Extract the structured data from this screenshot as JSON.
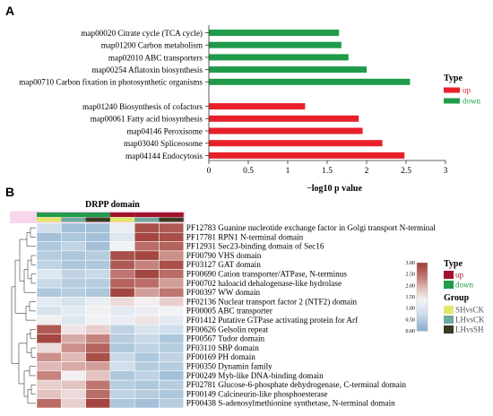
{
  "figure": {
    "panel_a_label": "A",
    "panel_b_label": "B"
  },
  "chart_data": [
    {
      "type": "bar",
      "orientation": "horizontal",
      "categories": [
        "map00020 Citrate cycle (TCA cycle)",
        "map01200 Carbon metabolism",
        "map02010 ABC transporters",
        "map00254 Aflatoxin biosynthesis",
        "map00710 Carbon fixation in photosynthetic organisms",
        "map01240 Biosynthesis of cofactors",
        "map00061 Fatty acid biosynthesis",
        "map04146 Peroxisome",
        "map03040 Spliceosome",
        "map04144 Endocytosis"
      ],
      "values": [
        1.65,
        1.68,
        1.77,
        2.0,
        2.55,
        1.22,
        1.9,
        1.95,
        2.2,
        2.48
      ],
      "groups": [
        "down",
        "down",
        "down",
        "down",
        "down",
        "up",
        "up",
        "up",
        "up",
        "up"
      ],
      "xlabel": "−log10 p value",
      "ylabel": "",
      "xlim": [
        0,
        3
      ],
      "xticks": [
        "0",
        "0.5",
        "1",
        "1.5",
        "2",
        "2.5",
        "3"
      ],
      "legend": {
        "title": "Type",
        "position": "right",
        "entries": [
          {
            "label": "up",
            "color": "#e8202a"
          },
          {
            "label": "down",
            "color": "#1f9b4a"
          }
        ]
      },
      "grid": false
    },
    {
      "type": "heatmap",
      "title": "DRPP domain",
      "rows": [
        "PF12783 Guanine nucleotide exchange factor in Golgi transport N-terminal",
        "PF17781 RPN1 N-terminal domain",
        "PF12931 Sec23-binding domain of Sec16",
        "PF00790 VHS domain",
        "PF03127 GAT domain",
        "PF00690 Cation transporter/ATPase, N-terminus",
        "PF00702 haloacid dehalogenase-like hydrolase",
        "PF00397 WW domain",
        "PF02136 Nuclear transport factor 2 (NTF2) domain",
        "PF00005 ABC transporter",
        "PF01412 Putative GTPase activating protein for Arf",
        "PF00626 Gelsolin repeat",
        "PF00567 Tudor domain",
        "PF03110 SBP domain",
        "PF00169 PH domain",
        "PF00350 Dynamin family",
        "PF00249 Myb-like DNA-binding domain",
        "PF02781 Glucose-6-phosphate dehydrogenase, C-terminal domain",
        "PF00149 Calcineurin-like phosphoesterase",
        "PF00438 S-adenosylmethionine synthetase, N-terminal domain"
      ],
      "column_type": [
        "down",
        "down",
        "down",
        "up",
        "up",
        "up"
      ],
      "column_group": [
        "SHvsCK",
        "LHvsCK",
        "LHvsSH",
        "SHvsCK",
        "LHvsCK",
        "LHvsSH"
      ],
      "values": [
        [
          0.8,
          0.3,
          0.3,
          1.2,
          2.8,
          2.7
        ],
        [
          0.3,
          0.4,
          0.3,
          1.0,
          2.9,
          2.8
        ],
        [
          0.4,
          0.6,
          0.3,
          1.3,
          2.5,
          2.6
        ],
        [
          0.5,
          0.4,
          0.5,
          2.8,
          2.9,
          2.2
        ],
        [
          0.6,
          0.4,
          0.4,
          2.7,
          2.3,
          2.8
        ],
        [
          1.0,
          0.6,
          0.7,
          2.4,
          2.9,
          2.5
        ],
        [
          0.7,
          0.5,
          0.5,
          2.6,
          2.5,
          2.1
        ],
        [
          0.4,
          0.5,
          0.4,
          2.9,
          2.1,
          2.4
        ],
        [
          1.1,
          0.9,
          1.2,
          1.6,
          1.4,
          1.7
        ],
        [
          0.9,
          1.1,
          1.4,
          1.1,
          1.2,
          1.3
        ],
        [
          1.4,
          1.0,
          1.3,
          1.2,
          1.5,
          1.1
        ],
        [
          2.7,
          1.5,
          1.7,
          0.6,
          0.9,
          0.8
        ],
        [
          2.9,
          2.0,
          2.3,
          0.5,
          0.7,
          0.4
        ],
        [
          1.6,
          2.2,
          2.6,
          0.4,
          0.6,
          0.5
        ],
        [
          2.2,
          1.9,
          2.8,
          0.7,
          0.4,
          0.6
        ],
        [
          1.9,
          2.0,
          2.1,
          0.8,
          0.5,
          0.5
        ],
        [
          2.3,
          1.4,
          1.8,
          0.4,
          0.6,
          0.3
        ],
        [
          1.7,
          1.8,
          2.4,
          0.5,
          0.4,
          0.5
        ],
        [
          1.8,
          1.6,
          2.5,
          0.6,
          0.5,
          0.4
        ],
        [
          2.5,
          1.7,
          2.9,
          0.4,
          0.3,
          0.5
        ]
      ],
      "colorbar": {
        "ticks": [
          "0.00",
          "0.50",
          "1.00",
          "1.50",
          "2.00",
          "2.50",
          "3.00"
        ],
        "range": [
          0,
          3.0
        ]
      },
      "legend": {
        "position": "right",
        "type_title": "Type",
        "type_entries": [
          {
            "label": "up",
            "color": "#a3122c"
          },
          {
            "label": "down",
            "color": "#1f9b4a"
          }
        ],
        "group_title": "Group",
        "group_entries": [
          {
            "label": "SHvsCK",
            "color": "#e2e66a"
          },
          {
            "label": "LHvsCK",
            "color": "#6fa99b"
          },
          {
            "label": "LHvsSH",
            "color": "#3b3b22"
          }
        ]
      }
    }
  ]
}
